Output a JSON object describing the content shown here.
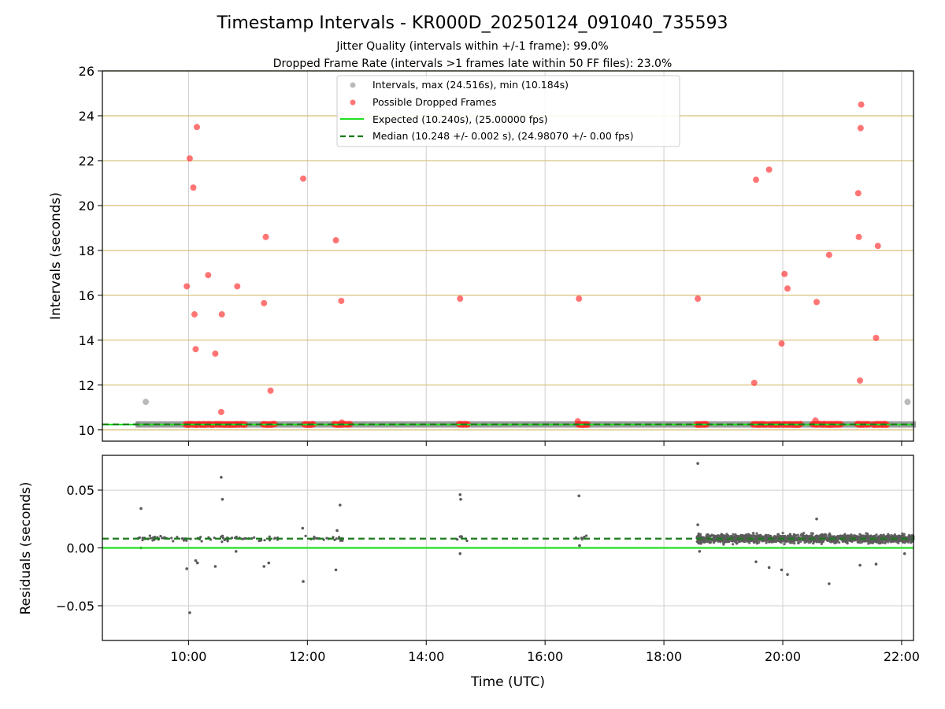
{
  "chart_data": {
    "title": "Timestamp Intervals - KR000D_20250124_091040_735593",
    "subtitle_lines": [
      "Jitter Quality (intervals within +/-1 frame): 99.0%",
      "Dropped Frame Rate (intervals >1 frames late within 50 FF files): 23.0%"
    ],
    "xlabel": "Time (UTC)",
    "x_ticks": [
      "10:00",
      "12:00",
      "14:00",
      "16:00",
      "18:00",
      "20:00",
      "22:00"
    ],
    "x_tick_hours": [
      10,
      12,
      14,
      16,
      18,
      20,
      22
    ],
    "xlim_hours": [
      8.55,
      22.2
    ],
    "colors": {
      "intervals": "#8c8c8c",
      "dropped": "#ff2b2b",
      "expected": "#22e022",
      "median": "#1a7a1a",
      "top_grid": "#d8c07a",
      "grid": "#cfcfcf",
      "residual_points": "#5a5a5a"
    },
    "top_panel": {
      "type": "scatter",
      "ylabel": "Intervals (seconds)",
      "ylim": [
        9.5,
        26
      ],
      "y_ticks": [
        "10",
        "12",
        "14",
        "16",
        "18",
        "20",
        "22",
        "24",
        "26"
      ],
      "y_tick_values": [
        10,
        12,
        14,
        16,
        18,
        20,
        22,
        24,
        26
      ],
      "expected_value": 10.24,
      "median_value": 10.248,
      "legend": {
        "position": "top-center",
        "entries": [
          {
            "marker": "dot-gray",
            "label": "Intervals, max (24.516s), min (10.184s)"
          },
          {
            "marker": "dot-red",
            "label": "Possible Dropped Frames"
          },
          {
            "marker": "line-solid",
            "label": "Expected (10.240s), (25.00000 fps)"
          },
          {
            "marker": "line-dashed",
            "label": "Median (10.248 +/- 0.002 s), (24.98070 +/- 0.00 fps)"
          }
        ]
      },
      "gray_points": [
        [
          9.28,
          11.25
        ],
        [
          22.1,
          11.25
        ],
        [
          9.15,
          10.25
        ]
      ],
      "dropped_points": [
        [
          9.97,
          16.4
        ],
        [
          10.02,
          22.1
        ],
        [
          10.08,
          20.8
        ],
        [
          10.1,
          15.15
        ],
        [
          10.12,
          13.6
        ],
        [
          10.14,
          23.5
        ],
        [
          10.33,
          16.9
        ],
        [
          10.45,
          13.4
        ],
        [
          10.56,
          15.15
        ],
        [
          10.55,
          10.8
        ],
        [
          10.82,
          16.4
        ],
        [
          11.27,
          15.65
        ],
        [
          11.3,
          18.6
        ],
        [
          11.38,
          11.75
        ],
        [
          11.93,
          21.2
        ],
        [
          12.48,
          18.45
        ],
        [
          12.57,
          15.75
        ],
        [
          14.57,
          15.85
        ],
        [
          16.57,
          15.85
        ],
        [
          18.57,
          15.85
        ],
        [
          19.52,
          12.1
        ],
        [
          19.55,
          21.15
        ],
        [
          19.77,
          21.6
        ],
        [
          19.98,
          13.85
        ],
        [
          20.03,
          16.95
        ],
        [
          20.08,
          16.3
        ],
        [
          20.57,
          15.7
        ],
        [
          20.78,
          17.8
        ],
        [
          21.27,
          20.55
        ],
        [
          21.28,
          18.6
        ],
        [
          21.3,
          12.2
        ],
        [
          21.31,
          23.45
        ],
        [
          21.32,
          24.5
        ],
        [
          21.57,
          14.1
        ],
        [
          21.6,
          18.2
        ],
        [
          12.58,
          10.33
        ],
        [
          16.55,
          10.38
        ],
        [
          20.55,
          10.42
        ]
      ],
      "dropped_clusters": [
        [
          9.95,
          10.95
        ],
        [
          11.25,
          11.45
        ],
        [
          11.95,
          12.1
        ],
        [
          12.45,
          12.72
        ],
        [
          14.55,
          14.7
        ],
        [
          16.55,
          16.72
        ],
        [
          18.55,
          18.72
        ],
        [
          19.5,
          19.72
        ],
        [
          19.78,
          19.95
        ],
        [
          20.0,
          20.3
        ],
        [
          20.5,
          20.7
        ],
        [
          20.72,
          20.98
        ],
        [
          21.25,
          21.45
        ],
        [
          21.52,
          21.75
        ]
      ]
    },
    "bottom_panel": {
      "type": "scatter",
      "ylabel": "Residuals (seconds)",
      "ylim": [
        -0.08,
        0.08
      ],
      "y_ticks": [
        "0.05",
        "0.00",
        "−0.05"
      ],
      "y_tick_values": [
        0.05,
        0.0,
        -0.05
      ],
      "expected_value": 0.0,
      "median_value": 0.008,
      "outliers": [
        [
          9.2,
          0.034
        ],
        [
          9.97,
          -0.018
        ],
        [
          10.02,
          -0.056
        ],
        [
          10.12,
          -0.011
        ],
        [
          10.15,
          -0.013
        ],
        [
          10.45,
          -0.016
        ],
        [
          10.55,
          0.061
        ],
        [
          10.57,
          0.042
        ],
        [
          10.8,
          -0.003
        ],
        [
          11.27,
          -0.016
        ],
        [
          11.35,
          -0.013
        ],
        [
          11.92,
          0.017
        ],
        [
          11.93,
          -0.029
        ],
        [
          12.48,
          -0.019
        ],
        [
          12.55,
          0.037
        ],
        [
          12.5,
          0.015
        ],
        [
          14.57,
          0.046
        ],
        [
          14.58,
          0.042
        ],
        [
          14.57,
          -0.005
        ],
        [
          16.57,
          0.045
        ],
        [
          16.58,
          0.002
        ],
        [
          18.57,
          0.073
        ],
        [
          18.57,
          0.02
        ],
        [
          19.55,
          -0.012
        ],
        [
          19.77,
          -0.017
        ],
        [
          19.98,
          -0.019
        ],
        [
          20.08,
          -0.023
        ],
        [
          20.57,
          0.025
        ],
        [
          20.78,
          -0.031
        ],
        [
          21.3,
          -0.015
        ],
        [
          21.57,
          -0.014
        ],
        [
          22.05,
          -0.005
        ],
        [
          18.6,
          -0.003
        ],
        [
          9.2,
          0.0
        ]
      ],
      "sparse_ranges": [
        [
          9.15,
          11.5,
          70
        ],
        [
          11.9,
          12.7,
          18
        ],
        [
          14.5,
          14.7,
          6
        ],
        [
          16.5,
          16.7,
          6
        ]
      ],
      "dense_range": [
        18.55,
        22.2,
        1400
      ]
    }
  }
}
